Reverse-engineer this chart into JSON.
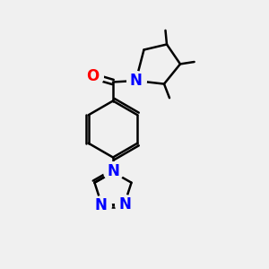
{
  "background_color": "#f0f0f0",
  "bond_color": "#000000",
  "nitrogen_color": "#0000ff",
  "oxygen_color": "#ff0000",
  "bond_width": 1.8,
  "fig_size": [
    3.0,
    3.0
  ],
  "dpi": 100,
  "xlim": [
    0,
    10
  ],
  "ylim": [
    0,
    10
  ],
  "font_size_atoms": 12
}
